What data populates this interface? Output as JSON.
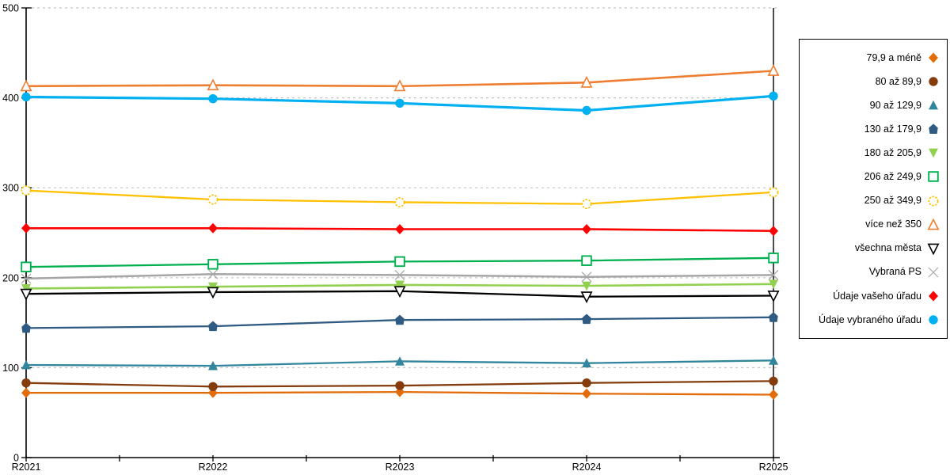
{
  "chart_data": {
    "type": "line",
    "title": "",
    "xlabel": "",
    "ylabel": "",
    "x_categories": [
      "R2021",
      "R2022",
      "R2023",
      "R2024",
      "R2025"
    ],
    "ylim": [
      0,
      500
    ],
    "yticks": [
      0,
      100,
      200,
      300,
      400,
      500
    ],
    "grid": "horizontal-dashed",
    "legend_position": "right-outside-box",
    "series": [
      {
        "name": "79,9 a méně",
        "color": "#E36C0A",
        "marker": "diamond-filled",
        "lw": 2.3,
        "values": [
          72,
          72,
          73,
          71,
          70
        ]
      },
      {
        "name": "80 až 89,9",
        "color": "#843C0C",
        "marker": "circle-filled",
        "lw": 2.3,
        "values": [
          83,
          79,
          80,
          83,
          85
        ]
      },
      {
        "name": "90 až 129,9",
        "color": "#31859C",
        "marker": "triangle-up-filled",
        "lw": 2.3,
        "values": [
          103,
          102,
          107,
          105,
          108
        ]
      },
      {
        "name": "130 až 179,9",
        "color": "#2F5B83",
        "marker": "pentagon-filled",
        "lw": 2.3,
        "values": [
          144,
          146,
          153,
          154,
          156
        ]
      },
      {
        "name": "180 až 205,9",
        "color": "#92D050",
        "marker": "triangle-down-filled",
        "lw": 2.6,
        "values": [
          188,
          190,
          192,
          191,
          193
        ]
      },
      {
        "name": "206 až 249,9",
        "color": "#00B050",
        "marker": "square-open",
        "lw": 2.3,
        "values": [
          212,
          215,
          218,
          219,
          222
        ]
      },
      {
        "name": "250 až 349,9",
        "color": "#FFC000",
        "marker": "circle-open-dashed",
        "lw": 2.3,
        "values": [
          297,
          287,
          284,
          282,
          295
        ]
      },
      {
        "name": "více než 350",
        "color": "#ED7D31",
        "marker": "triangle-up-open",
        "lw": 2.6,
        "values": [
          413,
          414,
          413,
          417,
          430
        ]
      },
      {
        "name": "všechna města",
        "color": "#000000",
        "marker": "triangle-down-open",
        "lw": 2.3,
        "values": [
          182,
          184,
          185,
          179,
          180
        ]
      },
      {
        "name": "Vybraná PS",
        "color": "#A6A6A6",
        "marker": "x",
        "lw": 2.5,
        "values": [
          199,
          204,
          203,
          201,
          203
        ]
      },
      {
        "name": "Údaje vašeho úřadu",
        "color": "#FF0000",
        "marker": "diamond-filled",
        "lw": 2.6,
        "values": [
          255,
          255,
          254,
          254,
          252
        ]
      },
      {
        "name": "Údaje vybraného úřadu",
        "color": "#00B0F0",
        "marker": "circle-filled",
        "lw": 3.2,
        "values": [
          401,
          399,
          394,
          386,
          402
        ]
      }
    ]
  },
  "axes": {
    "y_tick_labels": [
      "0",
      "100",
      "200",
      "300",
      "400",
      "500"
    ],
    "x_tick_labels": [
      "R2021",
      "R2022",
      "R2023",
      "R2024",
      "R2025"
    ]
  },
  "colors": {
    "gridline": "#C3C3C3",
    "axis": "#000000",
    "background": "#FFFFFF"
  }
}
